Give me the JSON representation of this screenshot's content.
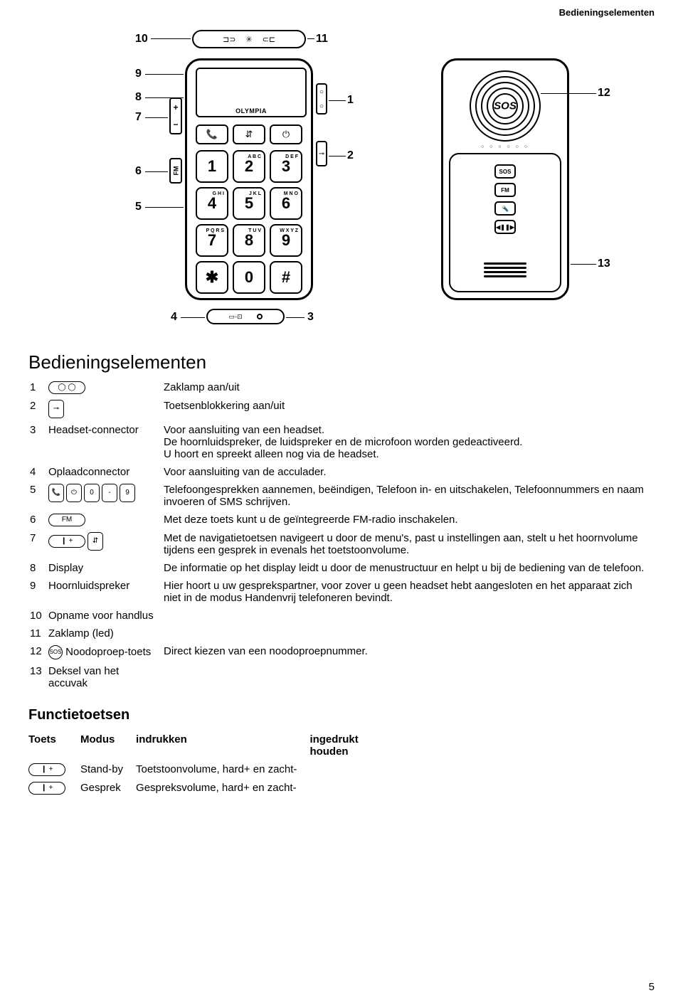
{
  "header": {
    "title": "Bedieningselementen"
  },
  "diagram": {
    "callouts": [
      "1",
      "2",
      "3",
      "4",
      "5",
      "6",
      "7",
      "8",
      "9",
      "10",
      "11",
      "12",
      "13"
    ],
    "brand": "OLYMPIA",
    "keys": [
      {
        "num": "1",
        "letters": ""
      },
      {
        "num": "2",
        "letters": "A\nB\nC"
      },
      {
        "num": "3",
        "letters": "D\nE\nF"
      },
      {
        "num": "4",
        "letters": "G\nH\nI"
      },
      {
        "num": "5",
        "letters": "J\nK\nL"
      },
      {
        "num": "6",
        "letters": "M\nN\nO"
      },
      {
        "num": "7",
        "letters": "P\nQ\nR\nS"
      },
      {
        "num": "8",
        "letters": "T\nU\nV"
      },
      {
        "num": "9",
        "letters": "W\nX\nY\nZ"
      },
      {
        "num": "✱",
        "letters": ""
      },
      {
        "num": "0",
        "letters": ""
      },
      {
        "num": "#",
        "letters": ""
      }
    ],
    "side_fm": "FM",
    "sos": "SOS",
    "back_buttons": [
      "SOS",
      "FM",
      "🔦",
      "◀❚❚▶"
    ]
  },
  "section_title_main": "Bedieningselementen",
  "elements": [
    {
      "n": "1",
      "label": "",
      "desc": "Zaklamp aan/uit",
      "icons": [
        "◯   ◯"
      ]
    },
    {
      "n": "2",
      "label": "",
      "desc": "Toetsenblokkering aan/uit",
      "icons": [
        "⊸"
      ]
    },
    {
      "n": "3",
      "label": "Headset-connector",
      "desc": "Voor aansluiting van een headset.\nDe hoornluidspreker, de luidspreker en de microfoon worden gedeactiveerd.\nU hoort en spreekt alleen nog via de headset."
    },
    {
      "n": "4",
      "label": "Oplaadconnector",
      "desc": "Voor aansluiting van de acculader."
    },
    {
      "n": "5",
      "label": "",
      "desc": "Telefoongesprekken aannemen, beëindigen, Telefoon in- en uitschakelen, Telefoonnummers en naam invoeren of SMS schrijven.",
      "icons": [
        "📞",
        "⏻",
        "0",
        "-",
        "9"
      ]
    },
    {
      "n": "6",
      "label": "",
      "desc": "Met deze toets kunt u de geïntegreerde FM-radio inschakelen.",
      "icons": [
        "FM"
      ]
    },
    {
      "n": "7",
      "label": "",
      "desc": "Met de navigatietoetsen navigeert u door de menu's, past u instellingen aan, stelt u het hoornvolume tijdens een gesprek in evenals het toetstoonvolume.",
      "icons": [
        "❙     +",
        "⇵"
      ]
    },
    {
      "n": "8",
      "label": "Display",
      "desc": "De informatie op het display leidt u door de menustructuur en helpt u bij de bediening van de telefoon."
    },
    {
      "n": "9",
      "label": "Hoornluidspreker",
      "desc": "Hier hoort u uw gesprekspartner, voor zover u geen headset hebt aangesloten en het apparaat zich niet in de modus Handenvrij telefoneren bevindt."
    },
    {
      "n": "10",
      "label": "Opname voor handlus",
      "desc": ""
    },
    {
      "n": "11",
      "label": "Zaklamp (led)",
      "desc": ""
    },
    {
      "n": "12",
      "label": "Noodoproep-toets",
      "desc": "Direct kiezen van een noodoproepnummer.",
      "icons": [
        "SOS"
      ],
      "icon_round": true
    },
    {
      "n": "13",
      "label": "Deksel van het accuvak",
      "desc": ""
    }
  ],
  "subsection_title": "Functietoetsen",
  "func_table": {
    "headers": [
      "Toets",
      "Modus",
      "indrukken",
      "ingedrukt\nhouden"
    ],
    "rows": [
      {
        "icon": "❙     +",
        "modus": "Stand-by",
        "indrukken": "Toetstoonvolume, hard+ en zacht-",
        "houden": ""
      },
      {
        "icon": "❙     +",
        "modus": "Gesprek",
        "indrukken": "Gespreksvolume, hard+ en zacht-",
        "houden": ""
      }
    ]
  },
  "page_number": "5"
}
